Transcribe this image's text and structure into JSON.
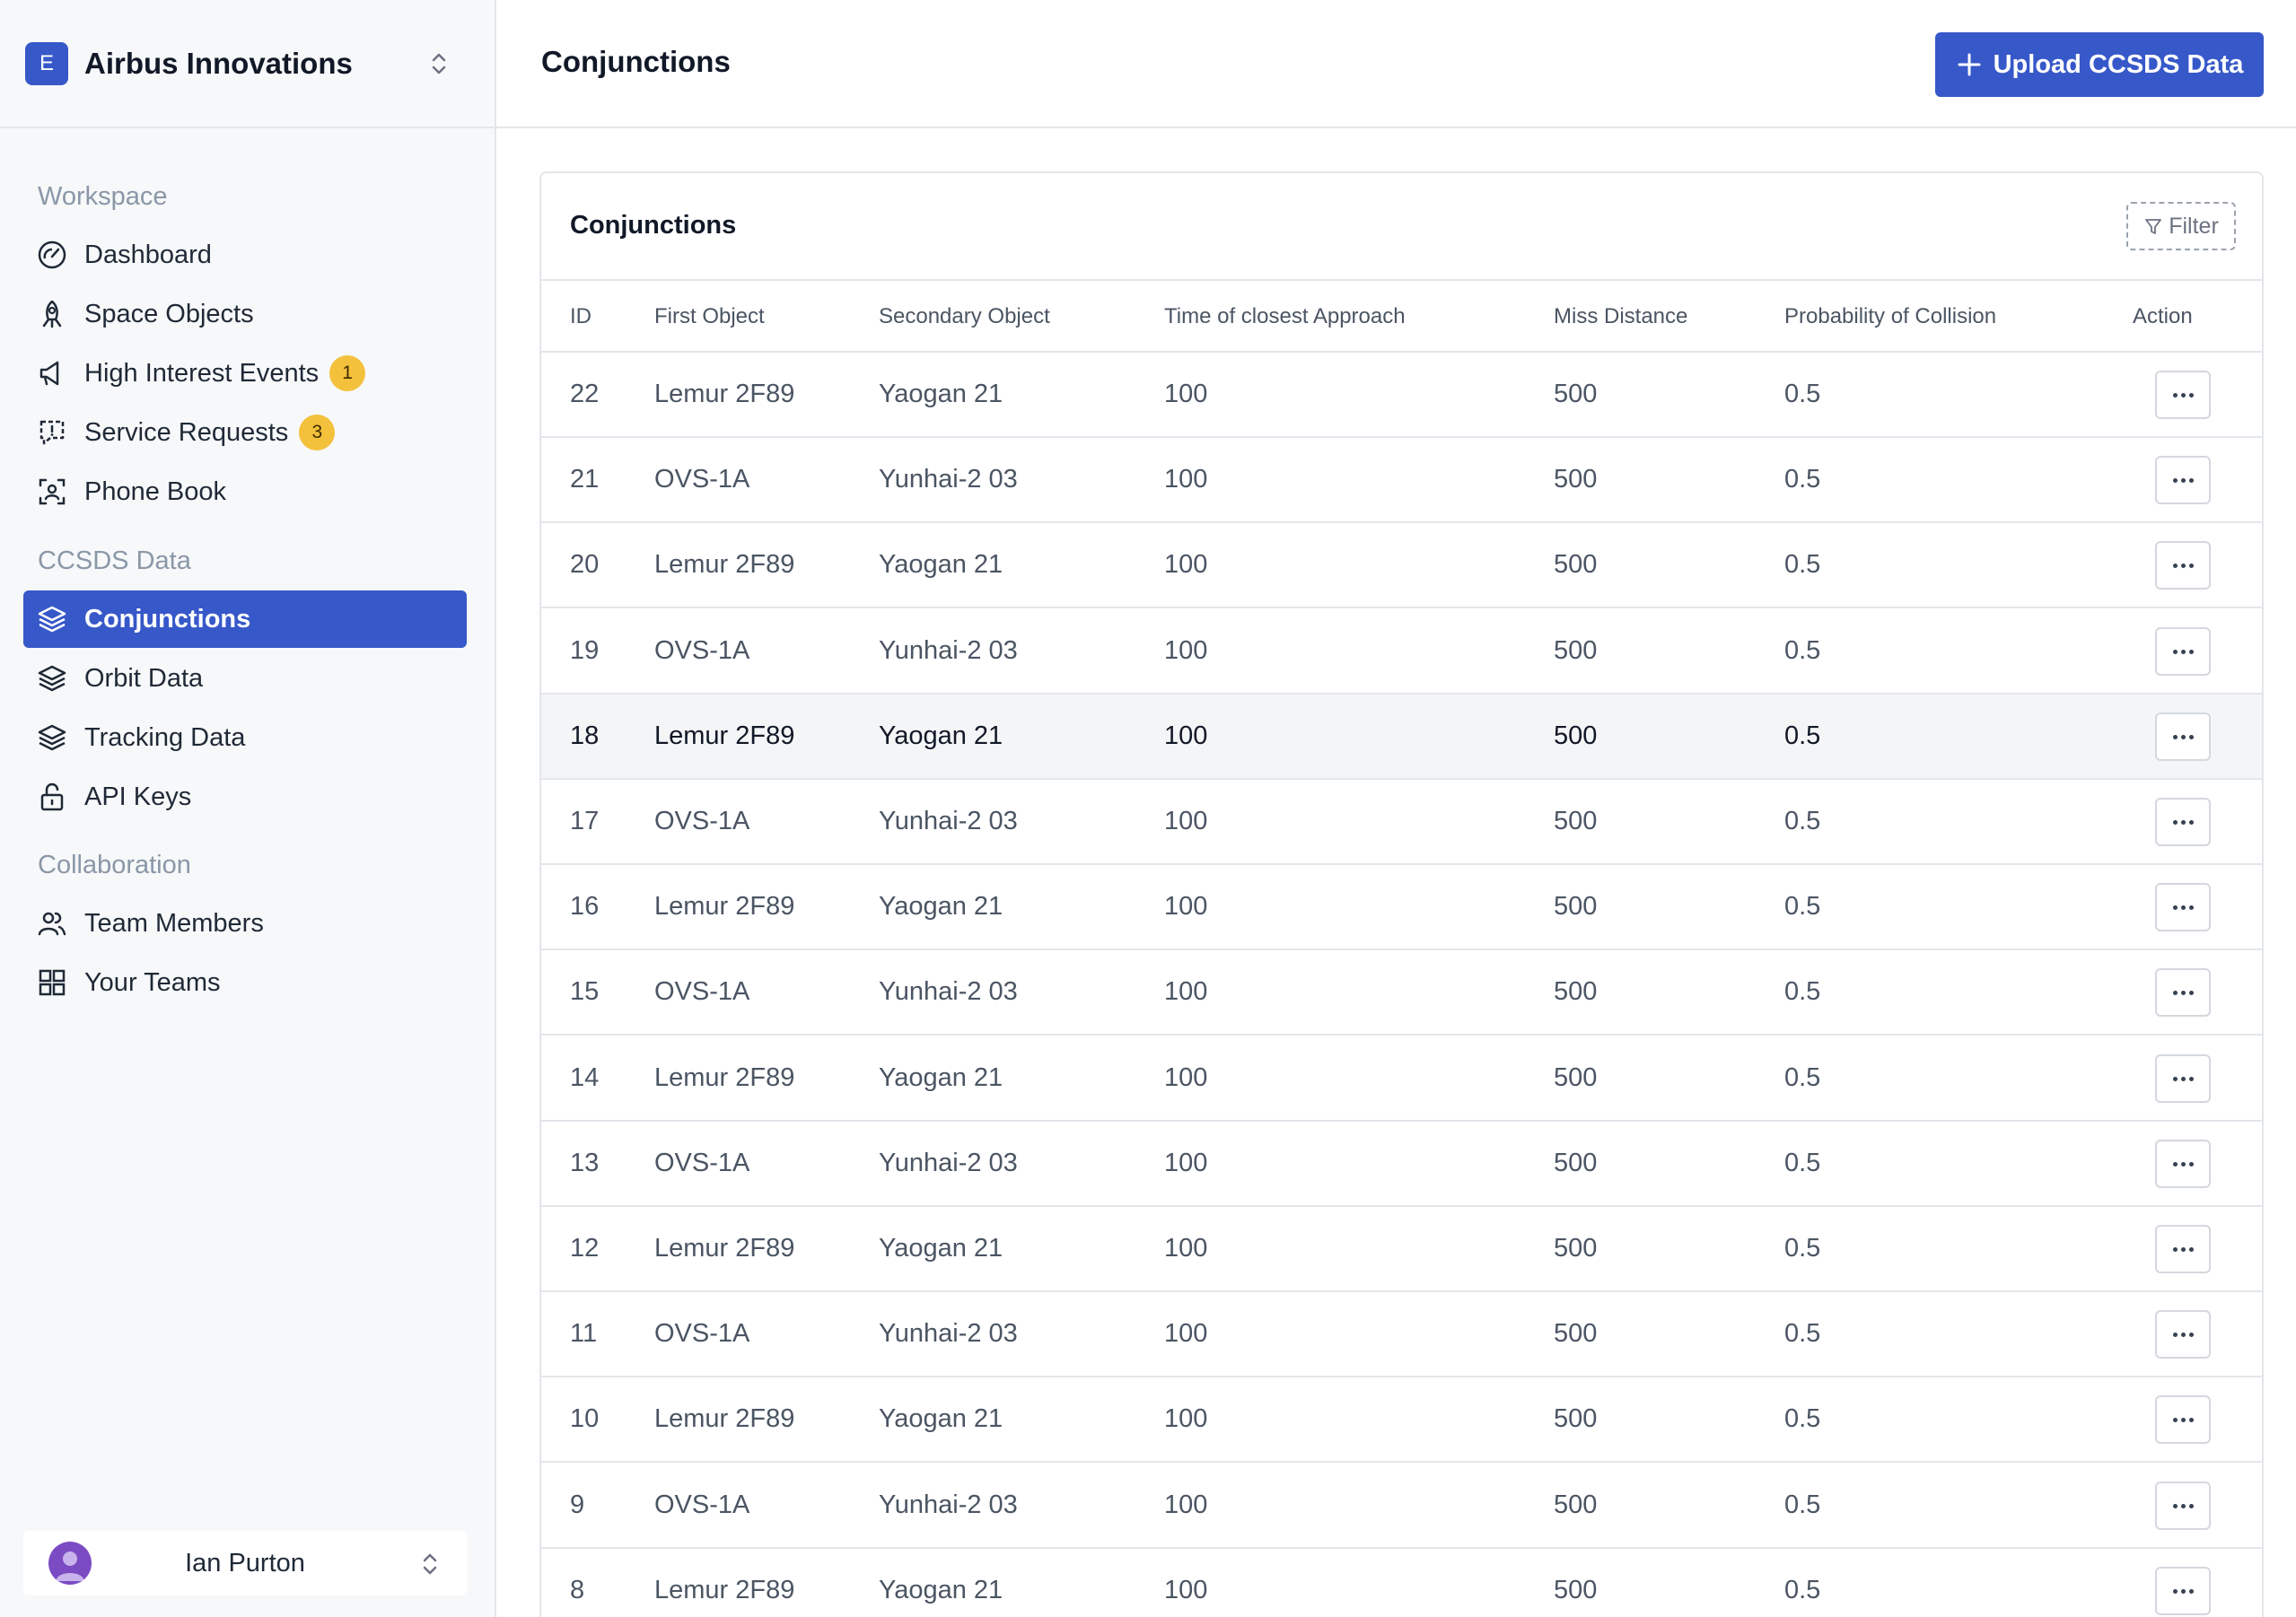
{
  "org": {
    "initial": "E",
    "name": "Airbus Innovations"
  },
  "sidebar": {
    "sections": {
      "workspace": "Workspace",
      "ccsds": "CCSDS Data",
      "collaboration": "Collaboration"
    },
    "items": [
      {
        "label": "Dashboard",
        "icon": "dashboard-icon"
      },
      {
        "label": "Space Objects",
        "icon": "rocket-icon"
      },
      {
        "label": "High Interest Events",
        "icon": "megaphone-icon",
        "badge": "1"
      },
      {
        "label": "Service Requests",
        "icon": "chat-alert-icon",
        "badge": "3"
      },
      {
        "label": "Phone Book",
        "icon": "contact-scan-icon"
      },
      {
        "label": "Conjunctions",
        "icon": "layers-icon",
        "active": true
      },
      {
        "label": "Orbit Data",
        "icon": "layers-icon"
      },
      {
        "label": "Tracking Data",
        "icon": "layers-icon"
      },
      {
        "label": "API Keys",
        "icon": "unlock-icon"
      },
      {
        "label": "Team Members",
        "icon": "users-icon"
      },
      {
        "label": "Your Teams",
        "icon": "grid-icon"
      }
    ]
  },
  "user": {
    "name": "Ian Purton"
  },
  "header": {
    "title": "Conjunctions",
    "upload_label": "Upload CCSDS Data"
  },
  "card": {
    "title": "Conjunctions",
    "filter_label": "Filter"
  },
  "table": {
    "columns": [
      "ID",
      "First Object",
      "Secondary Object",
      "Time of closest Approach",
      "Miss Distance",
      "Probability of Collision",
      "Action"
    ],
    "rows": [
      [
        "22",
        "Lemur 2F89",
        "Yaogan 21",
        "100",
        "500",
        "0.5"
      ],
      [
        "21",
        "OVS-1A",
        "Yunhai-2 03",
        "100",
        "500",
        "0.5"
      ],
      [
        "20",
        "Lemur 2F89",
        "Yaogan 21",
        "100",
        "500",
        "0.5"
      ],
      [
        "19",
        "OVS-1A",
        "Yunhai-2 03",
        "100",
        "500",
        "0.5"
      ],
      [
        "18",
        "Lemur 2F89",
        "Yaogan 21",
        "100",
        "500",
        "0.5"
      ],
      [
        "17",
        "OVS-1A",
        "Yunhai-2 03",
        "100",
        "500",
        "0.5"
      ],
      [
        "16",
        "Lemur 2F89",
        "Yaogan 21",
        "100",
        "500",
        "0.5"
      ],
      [
        "15",
        "OVS-1A",
        "Yunhai-2 03",
        "100",
        "500",
        "0.5"
      ],
      [
        "14",
        "Lemur 2F89",
        "Yaogan 21",
        "100",
        "500",
        "0.5"
      ],
      [
        "13",
        "OVS-1A",
        "Yunhai-2 03",
        "100",
        "500",
        "0.5"
      ],
      [
        "12",
        "Lemur 2F89",
        "Yaogan 21",
        "100",
        "500",
        "0.5"
      ],
      [
        "11",
        "OVS-1A",
        "Yunhai-2 03",
        "100",
        "500",
        "0.5"
      ],
      [
        "10",
        "Lemur 2F89",
        "Yaogan 21",
        "100",
        "500",
        "0.5"
      ],
      [
        "9",
        "OVS-1A",
        "Yunhai-2 03",
        "100",
        "500",
        "0.5"
      ],
      [
        "8",
        "Lemur 2F89",
        "Yaogan 21",
        "100",
        "500",
        "0.5"
      ]
    ]
  },
  "colors": {
    "accent": "#3758c9",
    "badge": "#f4c13c",
    "avatar": "#7b4bc4"
  }
}
